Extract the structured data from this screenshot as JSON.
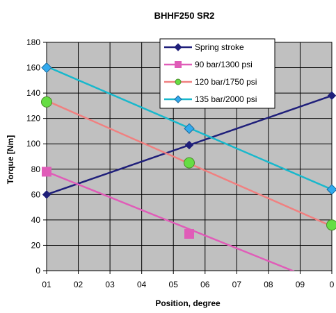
{
  "chart_data": {
    "type": "line",
    "title": "BHHF250 SR2",
    "xlabel": "Position, degree",
    "ylabel": "Torque [Nm]",
    "ylim": [
      0,
      180
    ],
    "yticks": [
      0,
      20,
      40,
      60,
      80,
      100,
      120,
      140,
      160,
      180
    ],
    "xtick_labels": [
      "01",
      "02",
      "03",
      "04",
      "05",
      "06",
      "07",
      "08",
      "09",
      "0"
    ],
    "grid": true,
    "legend_position": "top-right",
    "series": [
      {
        "name": "Spring stroke",
        "color": "#1f1f7a",
        "marker": "diamond",
        "line_points": [
          [
            0,
            60
          ],
          [
            9.4,
            138
          ]
        ],
        "markers": [
          [
            0,
            60
          ],
          [
            4.7,
            99
          ],
          [
            9.4,
            138
          ]
        ]
      },
      {
        "name": "90 bar/1300 psi",
        "color": "#e05cb8",
        "marker": "square",
        "line_points": [
          [
            0,
            78
          ],
          [
            8.1,
            0
          ],
          [
            9.4,
            -12.5
          ]
        ],
        "markers": [
          [
            0,
            78
          ],
          [
            4.7,
            29
          ]
        ]
      },
      {
        "name": "120 bar/1750 psi",
        "color": "#f08080",
        "marker": "circle",
        "marker_fill": "#66dd44",
        "line_points": [
          [
            0,
            134
          ],
          [
            9.4,
            35
          ]
        ],
        "markers": [
          [
            0,
            133
          ],
          [
            4.7,
            85
          ],
          [
            9.4,
            36
          ]
        ]
      },
      {
        "name": "135 bar/2000 psi",
        "color": "#18b8cc",
        "marker": "diamond",
        "marker_fill": "#33aaee",
        "line_points": [
          [
            0,
            161
          ],
          [
            9.4,
            64
          ]
        ],
        "markers": [
          [
            0,
            160
          ],
          [
            4.7,
            112
          ],
          [
            9.4,
            64
          ]
        ]
      }
    ]
  }
}
